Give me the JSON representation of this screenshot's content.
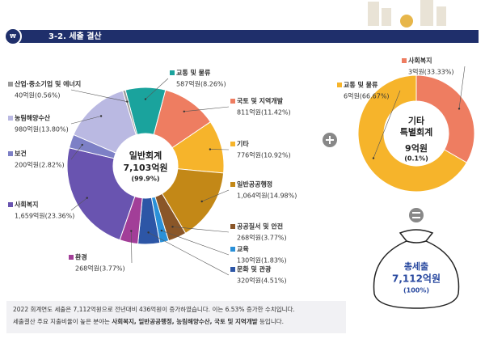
{
  "header": {
    "title": "3-2. 세출 결산"
  },
  "chart_data": [
    {
      "type": "pie",
      "center_lines": [
        "일반회계"
      ],
      "total": "7,103억원",
      "share": "(99.9%)",
      "categories": [
        "교통 및 물류",
        "국토 및 지역개발",
        "기타",
        "일반공공행정",
        "공공질서 및 안전",
        "교육",
        "문화 및 관광",
        "환경",
        "사회복지",
        "보건",
        "농림해양수산",
        "산업·중소기업 및 에너지"
      ],
      "values": [
        587,
        811,
        776,
        1064,
        268,
        130,
        320,
        268,
        1659,
        200,
        980,
        40
      ],
      "value_labels": [
        "587억원(8.26%)",
        "811억원(11.42%)",
        "776억원(10.92%)",
        "1,064억원(14.98%)",
        "268억원(3.77%)",
        "130억원(1.83%)",
        "320억원(4.51%)",
        "268억원(3.77%)",
        "1,659억원(23.36%)",
        "200억원(2.82%)",
        "980억원(13.80%)",
        "40억원(0.56%)"
      ],
      "colors": [
        "#1aa39d",
        "#ee7d61",
        "#f6b42b",
        "#c38817",
        "#8a5628",
        "#2a90d8",
        "#2d56a6",
        "#a23e98",
        "#6954b0",
        "#7d80c6",
        "#bab9e2",
        "#9b9b9b"
      ]
    },
    {
      "type": "pie",
      "center_lines": [
        "기타",
        "특별회계"
      ],
      "total": "9억원",
      "share": "(0.1%)",
      "categories": [
        "사회복지",
        "교통 및 물류"
      ],
      "values": [
        3,
        6
      ],
      "value_labels": [
        "3억원(33.33%)",
        "6억원(66.67%)"
      ],
      "colors": [
        "#ee7d61",
        "#f6b42b"
      ]
    }
  ],
  "grand_total": {
    "label": "총세출",
    "total": "7,112억원",
    "share": "(100%)"
  },
  "footer": {
    "lines": [
      [
        {
          "text": "2022 회계연도 세출은 7,112억원으로 전년대비 436억원이 증가하였습니다. 이는 6.53% 증가한 수치입니다.",
          "bold": false
        }
      ],
      [
        {
          "text": "세출결산 주요 지출비율이 높은 분야는 ",
          "bold": false
        },
        {
          "text": "사회복지, 일반공공행정, 농림해양수산, 국토 및 지역개발",
          "bold": true
        },
        {
          "text": " 등입니다.",
          "bold": false
        }
      ]
    ]
  }
}
